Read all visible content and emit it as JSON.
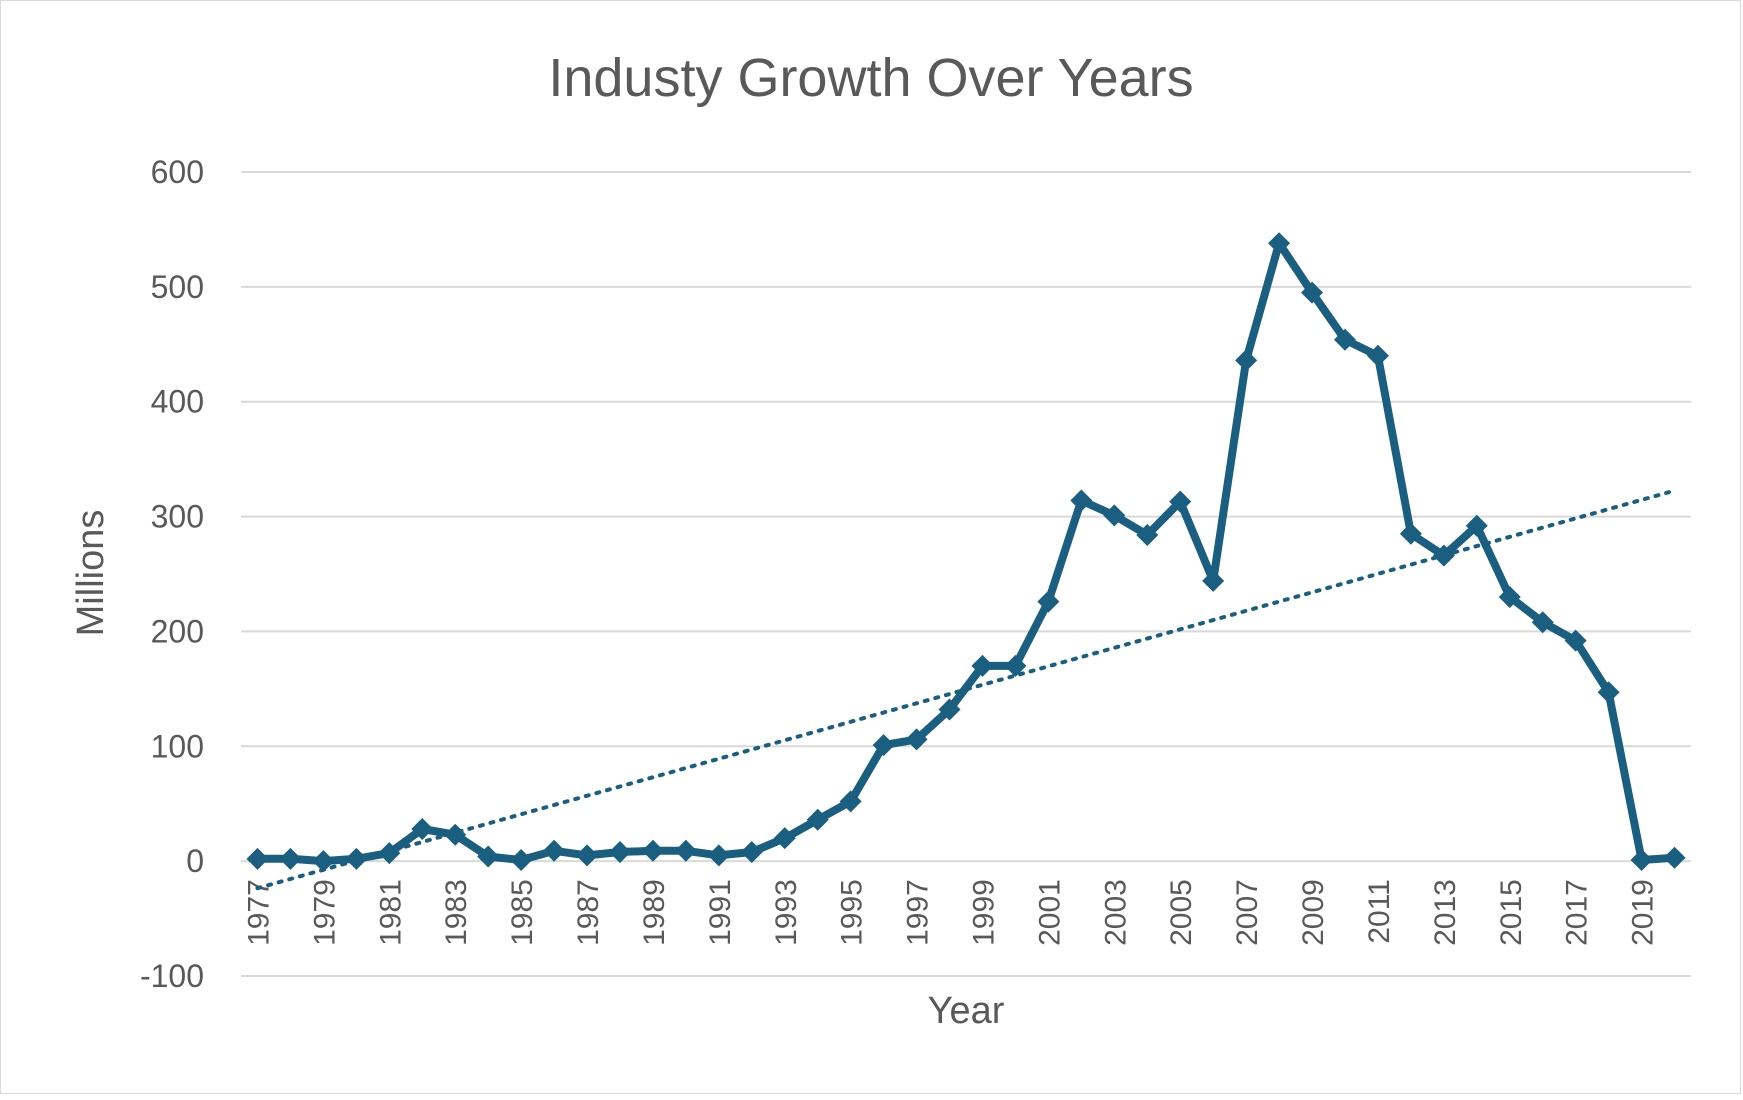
{
  "chart_data": {
    "type": "line",
    "title": "Industy Growth Over Years",
    "xlabel": "Year",
    "ylabel": "Millions",
    "ylim": [
      -100,
      600
    ],
    "yticks": [
      -100,
      0,
      100,
      200,
      300,
      400,
      500,
      600
    ],
    "grid": true,
    "legend": "none",
    "x": [
      1977,
      1978,
      1979,
      1980,
      1981,
      1982,
      1983,
      1984,
      1985,
      1986,
      1987,
      1988,
      1989,
      1990,
      1991,
      1992,
      1993,
      1994,
      1995,
      1996,
      1997,
      1998,
      1999,
      2000,
      2001,
      2002,
      2003,
      2004,
      2005,
      2006,
      2007,
      2008,
      2009,
      2010,
      2011,
      2012,
      2013,
      2014,
      2015,
      2016,
      2017,
      2018,
      2019,
      2020
    ],
    "xtick_labels": [
      "1977",
      "1979",
      "1981",
      "1983",
      "1985",
      "1987",
      "1989",
      "1991",
      "1993",
      "1995",
      "1997",
      "1999",
      "2001",
      "2003",
      "2005",
      "2007",
      "2009",
      "2011",
      "2013",
      "2015",
      "2017",
      "2019"
    ],
    "series": [
      {
        "values": [
          2,
          2,
          0,
          2,
          7,
          28,
          23,
          4,
          1,
          9,
          5,
          8,
          9,
          9,
          5,
          8,
          20,
          36,
          52,
          101,
          106,
          132,
          170,
          170,
          226,
          314,
          301,
          284,
          313,
          244,
          436,
          538,
          495,
          454,
          440,
          285,
          266,
          292,
          230,
          208,
          192,
          147,
          1,
          3
        ],
        "marker": "diamond",
        "color": "#1a5e80"
      }
    ],
    "trendline": {
      "type": "linear",
      "style": "dotted",
      "color": "#1a5e80"
    }
  }
}
